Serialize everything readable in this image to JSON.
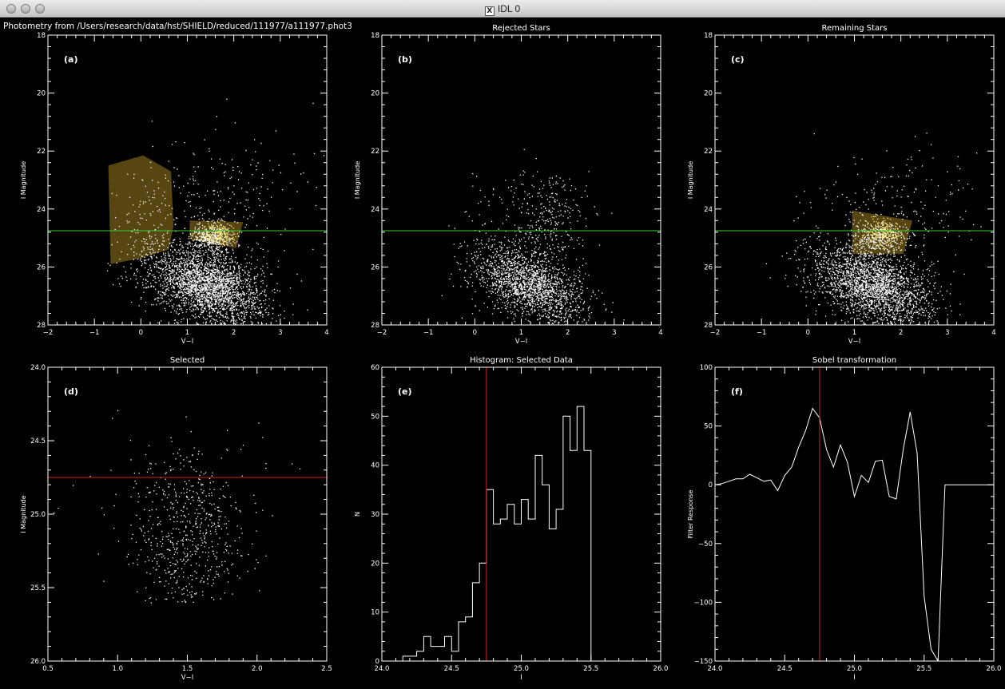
{
  "window": {
    "title": "IDL 0",
    "buttons": [
      "close",
      "minimize",
      "zoom"
    ]
  },
  "figure_title": "Photometry from /Users/research/data/hst/SHIELD/reduced/111977/a111977.phot3",
  "colors": {
    "background": "#000000",
    "axes": "#ffffff",
    "points": "#ffffff",
    "green_line": "#33cc33",
    "red_line": "#d42020",
    "selection_box": "#a08020"
  },
  "chart_data": [
    {
      "type": "scatter",
      "panel": "(a)",
      "title": "",
      "xlabel": "V−I",
      "ylabel": "I Magnitude",
      "xlim": [
        -2,
        4
      ],
      "ylim": [
        28,
        18
      ],
      "y_inverted": true,
      "xticks": [
        "−2",
        "−1",
        "0",
        "1",
        "2",
        "3",
        "4"
      ],
      "yticks": [
        "18",
        "20",
        "22",
        "24",
        "26",
        "28"
      ],
      "hline": 24.75,
      "regions": [
        {
          "name": "blue plume box",
          "polygon": [
            [
              -0.7,
              22.5
            ],
            [
              0.05,
              22.15
            ],
            [
              0.65,
              22.7
            ],
            [
              0.7,
              24.6
            ],
            [
              0.6,
              25.4
            ],
            [
              0.0,
              25.7
            ],
            [
              -0.65,
              25.9
            ]
          ]
        },
        {
          "name": "RGB tip box",
          "polygon": [
            [
              1.05,
              24.4
            ],
            [
              2.2,
              24.45
            ],
            [
              2.05,
              25.35
            ],
            [
              1.05,
              25.05
            ]
          ]
        }
      ],
      "point_clouds": [
        {
          "cx": 1.4,
          "sx": 0.55,
          "cy": 26.6,
          "sy": 0.65,
          "n": 2600,
          "tilt": 0.35
        },
        {
          "cx": 1.5,
          "sx": 0.22,
          "cy": 25.0,
          "sy": 0.22,
          "n": 300,
          "tilt": 0.0
        },
        {
          "cx": 0.2,
          "sx": 0.35,
          "cy": 25.3,
          "sy": 1.1,
          "n": 160,
          "tilt": 0.0
        },
        {
          "cx": 1.7,
          "sx": 0.8,
          "cy": 23.6,
          "sy": 1.2,
          "n": 260,
          "tilt": 0.0
        }
      ]
    },
    {
      "type": "scatter",
      "panel": "(b)",
      "title": "Rejected Stars",
      "xlabel": "V−I",
      "ylabel": "I Magnitude",
      "xlim": [
        -2,
        4
      ],
      "ylim": [
        28,
        18
      ],
      "y_inverted": true,
      "xticks": [
        "−2",
        "−1",
        "0",
        "1",
        "2",
        "3",
        "4"
      ],
      "yticks": [
        "18",
        "20",
        "22",
        "24",
        "26",
        "28"
      ],
      "hline": 24.75,
      "point_clouds": [
        {
          "cx": 1.2,
          "sx": 0.5,
          "cy": 26.6,
          "sy": 0.6,
          "n": 1700,
          "tilt": 0.45
        },
        {
          "cx": 1.45,
          "sx": 0.45,
          "cy": 24.5,
          "sy": 0.9,
          "n": 350,
          "tilt": 0.0
        },
        {
          "cx": 0.4,
          "sx": 0.4,
          "cy": 25.5,
          "sy": 1.0,
          "n": 120,
          "tilt": 0.0
        }
      ]
    },
    {
      "type": "scatter",
      "panel": "(c)",
      "title": "Remaining Stars",
      "xlabel": "V−I",
      "ylabel": "I Magnitude",
      "xlim": [
        -2,
        4
      ],
      "ylim": [
        28,
        18
      ],
      "y_inverted": true,
      "xticks": [
        "−2",
        "−1",
        "0",
        "1",
        "2",
        "3",
        "4"
      ],
      "yticks": [
        "18",
        "20",
        "22",
        "24",
        "26",
        "28"
      ],
      "hline": 24.75,
      "regions": [
        {
          "name": "selection box",
          "polygon": [
            [
              0.95,
              24.05
            ],
            [
              2.25,
              24.4
            ],
            [
              2.05,
              25.55
            ],
            [
              0.95,
              25.55
            ]
          ]
        }
      ],
      "point_clouds": [
        {
          "cx": 1.4,
          "sx": 0.55,
          "cy": 26.6,
          "sy": 0.65,
          "n": 2300,
          "tilt": 0.35
        },
        {
          "cx": 1.5,
          "sx": 0.3,
          "cy": 25.0,
          "sy": 0.3,
          "n": 320,
          "tilt": 0.0
        },
        {
          "cx": 1.9,
          "sx": 0.9,
          "cy": 23.8,
          "sy": 1.0,
          "n": 200,
          "tilt": 0.0
        },
        {
          "cx": 0.2,
          "sx": 0.4,
          "cy": 26.0,
          "sy": 0.8,
          "n": 90,
          "tilt": 0.0
        }
      ]
    },
    {
      "type": "scatter",
      "panel": "(d)",
      "title": "Selected",
      "xlabel": "V−I",
      "ylabel": "I Magnitude",
      "xlim": [
        0.5,
        2.5
      ],
      "ylim": [
        26.0,
        24.0
      ],
      "y_inverted": true,
      "xticks": [
        "0.5",
        "1.0",
        "1.5",
        "2.0",
        "2.5"
      ],
      "yticks": [
        "24.0",
        "24.5",
        "25.0",
        "25.5",
        "26.0"
      ],
      "hline": 24.75,
      "point_clouds": [
        {
          "cx": 1.5,
          "sx": 0.2,
          "cy": 25.15,
          "sy": 0.28,
          "n": 620,
          "tilt": 0.0
        },
        {
          "cx": 1.5,
          "sx": 0.38,
          "cy": 25.0,
          "sy": 0.35,
          "n": 80,
          "tilt": 0.0
        }
      ],
      "y_range_clip": [
        24.2,
        25.6
      ]
    },
    {
      "type": "line",
      "subtype": "histogram",
      "panel": "(e)",
      "title": "Histogram: Selected Data",
      "xlabel": "I",
      "ylabel": "N",
      "xlim": [
        24.0,
        26.0
      ],
      "ylim": [
        0,
        60
      ],
      "xticks": [
        "24.0",
        "24.5",
        "25.0",
        "25.5",
        "26.0"
      ],
      "yticks": [
        "0",
        "10",
        "20",
        "30",
        "40",
        "50",
        "60"
      ],
      "vline": 24.75,
      "bin_edges": [
        24.15,
        24.2,
        24.25,
        24.3,
        24.35,
        24.4,
        24.45,
        24.5,
        24.55,
        24.6,
        24.65,
        24.7,
        24.75,
        24.8,
        24.85,
        24.9,
        24.95,
        25.0,
        25.05,
        25.1,
        25.15,
        25.2,
        25.25,
        25.3,
        25.35,
        25.4,
        25.45,
        25.5,
        25.55,
        25.6
      ],
      "counts": [
        1,
        1,
        2,
        5,
        3,
        3,
        5,
        2,
        8,
        9,
        16,
        20,
        35,
        28,
        29,
        32,
        28,
        33,
        29,
        42,
        36,
        27,
        31,
        50,
        43,
        52,
        43,
        0,
        0
      ]
    },
    {
      "type": "line",
      "panel": "(f)",
      "title": "Sobel transformation",
      "xlabel": "I",
      "ylabel": "Filter Response",
      "xlim": [
        24.0,
        26.0
      ],
      "ylim": [
        -150,
        100
      ],
      "xticks": [
        "24.0",
        "24.5",
        "25.0",
        "25.5",
        "26.0"
      ],
      "yticks": [
        "−150",
        "−100",
        "−50",
        "0",
        "50",
        "100"
      ],
      "vline": 24.75,
      "x": [
        24.0,
        24.05,
        24.1,
        24.15,
        24.2,
        24.25,
        24.3,
        24.35,
        24.4,
        24.45,
        24.5,
        24.55,
        24.6,
        24.65,
        24.7,
        24.75,
        24.8,
        24.85,
        24.9,
        24.95,
        25.0,
        25.05,
        25.1,
        25.15,
        25.2,
        25.25,
        25.3,
        25.35,
        25.4,
        25.45,
        25.5,
        25.55,
        25.6,
        25.65,
        25.7,
        25.75,
        25.8,
        25.85,
        25.9,
        25.95,
        26.0
      ],
      "y": [
        0,
        1,
        3,
        5,
        5,
        9,
        6,
        3,
        4,
        -5,
        8,
        15,
        32,
        46,
        65,
        57,
        30,
        15,
        34,
        19,
        -10,
        8,
        2,
        20,
        21,
        -10,
        -12,
        30,
        62,
        27,
        -95,
        -140,
        -150,
        0,
        0,
        0,
        0,
        0,
        0,
        0,
        0
      ]
    }
  ]
}
